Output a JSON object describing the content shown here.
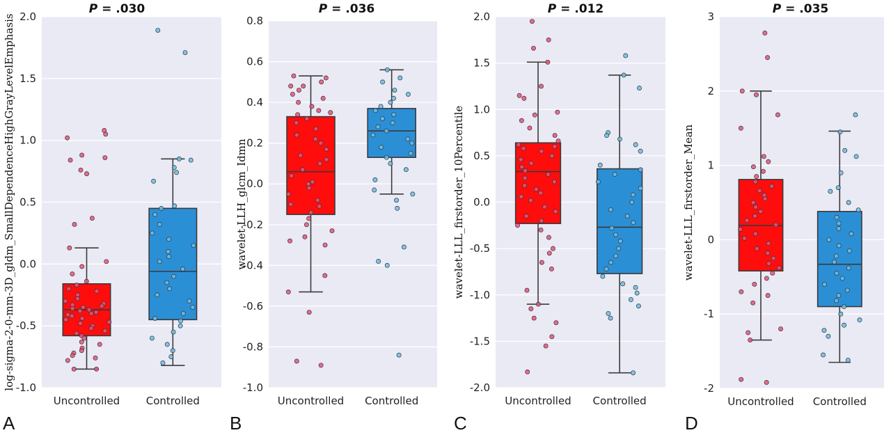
{
  "chart_data": [
    {
      "type": "box",
      "panel_label": "A",
      "title_italic": "P",
      "title_rest": " = .030",
      "ylabel": "log-sigma-2-0-mm-3D_gldm_SmallDependenceHighGrayLevelEmphasis",
      "ylim": [
        -1.0,
        2.0
      ],
      "yticks": [
        -1.0,
        -0.5,
        0.0,
        0.5,
        1.0,
        1.5,
        2.0
      ],
      "ytick_labels": [
        "-1.0",
        "-0.5",
        "0.0",
        "0.5",
        "1.0",
        "1.5",
        "2.0"
      ],
      "grid": true,
      "categories": [
        "Uncontrolled",
        "Controlled"
      ],
      "colors": [
        "#ff0d0d",
        "#2b8fd6"
      ],
      "point_colors": [
        "#e8547a",
        "#6bbde6"
      ],
      "boxes": [
        {
          "whisker_low": -0.85,
          "q1": -0.58,
          "median": -0.37,
          "q3": -0.16,
          "whisker_high": 0.13
        },
        {
          "whisker_low": -0.82,
          "q1": -0.45,
          "median": -0.06,
          "q3": 0.45,
          "whisker_high": 0.85
        }
      ],
      "points": [
        [
          1.08,
          1.05,
          1.02,
          0.88,
          0.86,
          0.84,
          0.76,
          0.73,
          0.37,
          0.32,
          0.13,
          0.02,
          -0.02,
          -0.08,
          -0.14,
          -0.17,
          -0.2,
          -0.22,
          -0.25,
          -0.28,
          -0.3,
          -0.32,
          -0.33,
          -0.34,
          -0.35,
          -0.36,
          -0.37,
          -0.38,
          -0.39,
          -0.4,
          -0.41,
          -0.42,
          -0.44,
          -0.45,
          -0.47,
          -0.48,
          -0.5,
          -0.52,
          -0.54,
          -0.56,
          -0.58,
          -0.6,
          -0.63,
          -0.65,
          -0.68,
          -0.7,
          -0.72,
          -0.74,
          -0.76,
          -0.78,
          -0.85,
          -0.85
        ],
        [
          1.89,
          1.71,
          0.85,
          0.84,
          0.78,
          0.74,
          0.67,
          0.47,
          0.45,
          0.4,
          0.32,
          0.25,
          0.2,
          0.15,
          0.1,
          0.06,
          0.02,
          -0.04,
          -0.1,
          -0.15,
          -0.2,
          -0.25,
          -0.3,
          -0.35,
          -0.4,
          -0.44,
          -0.46,
          -0.5,
          -0.55,
          -0.6,
          -0.65,
          -0.7,
          -0.75,
          -0.8
        ]
      ]
    },
    {
      "type": "box",
      "panel_label": "B",
      "title_italic": "P",
      "title_rest": " = .036",
      "ylabel": "wavelet-LLH_glcm_Idmn",
      "ylim": [
        -1.0,
        0.8
      ],
      "yticks": [
        -1.0,
        -0.8,
        -0.6,
        -0.4,
        -0.2,
        0.0,
        0.2,
        0.4,
        0.6,
        0.8
      ],
      "ytick_labels": [
        "-1.0",
        "-0.8",
        "-0.6",
        "-0.4",
        "-0.2",
        "0.0",
        "0.2",
        "0.4",
        "0.6",
        "0.8"
      ],
      "grid": true,
      "categories": [
        "Uncontrolled",
        "Controlled"
      ],
      "colors": [
        "#ff0d0d",
        "#2b8fd6"
      ],
      "point_colors": [
        "#e8547a",
        "#6bbde6"
      ],
      "boxes": [
        {
          "whisker_low": -0.53,
          "q1": -0.15,
          "median": 0.06,
          "q3": 0.33,
          "whisker_high": 0.53
        },
        {
          "whisker_low": -0.05,
          "q1": 0.13,
          "median": 0.26,
          "q3": 0.37,
          "whisker_high": 0.56
        }
      ],
      "points": [
        [
          0.53,
          0.52,
          0.5,
          0.48,
          0.46,
          0.44,
          0.42,
          0.4,
          0.38,
          0.36,
          0.34,
          0.32,
          0.3,
          0.27,
          0.24,
          0.2,
          0.17,
          0.14,
          0.1,
          0.07,
          0.04,
          0.01,
          -0.02,
          -0.05,
          -0.08,
          -0.11,
          -0.14,
          -0.17,
          -0.2,
          -0.23,
          -0.26,
          -0.28,
          -0.3,
          -0.45,
          -0.53,
          -0.63,
          -0.87,
          -0.89,
          0.48,
          0.35,
          0.22,
          0.12,
          0.0,
          -0.1
        ],
        [
          0.56,
          0.52,
          0.5,
          0.46,
          0.44,
          0.42,
          0.4,
          0.38,
          0.36,
          0.34,
          0.32,
          0.3,
          0.28,
          0.26,
          0.24,
          0.22,
          0.2,
          0.18,
          0.15,
          0.13,
          0.1,
          0.07,
          0.02,
          -0.03,
          -0.05,
          -0.08,
          -0.12,
          -0.31,
          -0.38,
          -0.4,
          -0.84
        ]
      ]
    },
    {
      "type": "box",
      "panel_label": "C",
      "title_italic": "P",
      "title_rest": " = .012",
      "ylabel": "wavelet-LLL_firstorder_10Percentile",
      "ylim": [
        -2.0,
        2.0
      ],
      "yticks": [
        -2.0,
        -1.5,
        -1.0,
        -0.5,
        0.0,
        0.5,
        1.0,
        1.5,
        2.0
      ],
      "ytick_labels": [
        "-2.0",
        "-1.5",
        "-1.0",
        "-0.5",
        "0.0",
        "0.5",
        "1.0",
        "1.5",
        "2.0"
      ],
      "grid": true,
      "categories": [
        "Uncontrolled",
        "Controlled"
      ],
      "colors": [
        "#ff0d0d",
        "#2b8fd6"
      ],
      "point_colors": [
        "#e8547a",
        "#6bbde6"
      ],
      "boxes": [
        {
          "whisker_low": -1.1,
          "q1": -0.23,
          "median": 0.33,
          "q3": 0.64,
          "whisker_high": 1.51
        },
        {
          "whisker_low": -1.84,
          "q1": -0.77,
          "median": -0.27,
          "q3": 0.36,
          "whisker_high": 1.37
        }
      ],
      "points": [
        [
          1.95,
          1.75,
          1.66,
          1.51,
          1.25,
          1.15,
          1.12,
          0.97,
          0.94,
          0.88,
          0.8,
          0.72,
          0.66,
          0.62,
          0.6,
          0.58,
          0.55,
          0.5,
          0.46,
          0.42,
          0.38,
          0.34,
          0.3,
          0.26,
          0.22,
          0.18,
          0.14,
          0.1,
          0.06,
          0.02,
          -0.05,
          -0.1,
          -0.15,
          -0.2,
          -0.25,
          -0.3,
          -0.38,
          -0.5,
          -0.55,
          -0.65,
          -0.72,
          -0.95,
          -1.1,
          -1.15,
          -1.25,
          -1.3,
          -1.45,
          -1.55,
          -1.83
        ],
        [
          1.58,
          1.37,
          1.23,
          0.75,
          0.72,
          0.68,
          0.62,
          0.55,
          0.4,
          0.35,
          0.3,
          0.22,
          0.15,
          0.08,
          0.0,
          -0.08,
          -0.15,
          -0.22,
          -0.28,
          -0.35,
          -0.42,
          -0.5,
          -0.58,
          -0.65,
          -0.72,
          -0.8,
          -0.88,
          -0.92,
          -0.98,
          -1.05,
          -1.12,
          -1.2,
          -1.25,
          -1.84
        ]
      ]
    },
    {
      "type": "box",
      "panel_label": "D",
      "title_italic": "P",
      "title_rest": " = .035",
      "ylabel": "wavelet-LLL_firstorder_Mean",
      "ylim": [
        -2.0,
        3.0
      ],
      "yticks": [
        -2,
        -1,
        0,
        1,
        2,
        3
      ],
      "ytick_labels": [
        "-2",
        "-1",
        "0",
        "1",
        "2",
        "3"
      ],
      "grid": true,
      "categories": [
        "Uncontrolled",
        "Controlled"
      ],
      "colors": [
        "#ff0d0d",
        "#2b8fd6"
      ],
      "point_colors": [
        "#e8547a",
        "#6bbde6"
      ],
      "boxes": [
        {
          "whisker_low": -1.35,
          "q1": -0.42,
          "median": 0.19,
          "q3": 0.81,
          "whisker_high": 2.0
        },
        {
          "whisker_low": -1.65,
          "q1": -0.9,
          "median": -0.33,
          "q3": 0.38,
          "whisker_high": 1.46
        }
      ],
      "points": [
        [
          2.78,
          2.45,
          2.0,
          1.95,
          1.68,
          1.5,
          1.12,
          1.05,
          0.98,
          0.92,
          0.85,
          0.78,
          0.72,
          0.66,
          0.6,
          0.55,
          0.5,
          0.44,
          0.38,
          0.32,
          0.26,
          0.2,
          0.14,
          0.08,
          0.02,
          -0.05,
          -0.12,
          -0.18,
          -0.25,
          -0.32,
          -0.38,
          -0.45,
          -0.52,
          -0.6,
          -0.7,
          -0.75,
          -0.85,
          -1.2,
          -1.25,
          -1.35,
          -1.88,
          -1.92
        ],
        [
          1.68,
          1.45,
          1.2,
          1.12,
          0.9,
          0.7,
          0.65,
          0.5,
          0.4,
          0.3,
          0.22,
          0.15,
          0.08,
          0.0,
          -0.08,
          -0.15,
          -0.22,
          -0.3,
          -0.38,
          -0.45,
          -0.52,
          -0.6,
          -0.68,
          -0.75,
          -0.82,
          -0.9,
          -1.0,
          -1.08,
          -1.15,
          -1.22,
          -1.3,
          -1.55,
          -1.62
        ]
      ]
    }
  ]
}
